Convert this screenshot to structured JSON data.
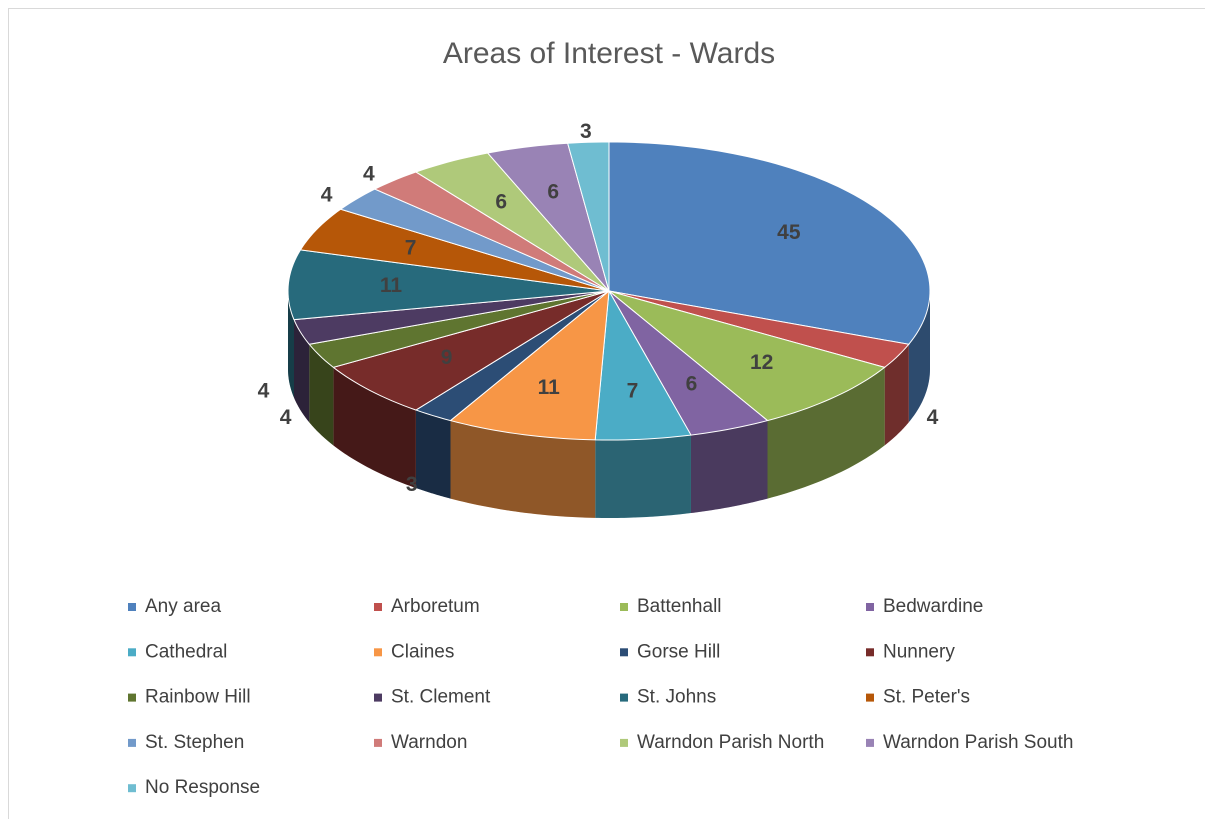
{
  "chart_data": {
    "type": "pie3d",
    "title": "Areas of Interest - Wards",
    "categories": [
      "Any area",
      "Arboretum",
      "Battenhall",
      "Bedwardine",
      "Cathedral",
      "Claines",
      "Gorse Hill",
      "Nunnery",
      "Rainbow Hill",
      "St. Clement",
      "St. Johns",
      "St. Peter's",
      "St. Stephen",
      "Warndon",
      "Warndon Parish North",
      "Warndon Parish South",
      "No Response"
    ],
    "values": [
      45,
      4,
      12,
      6,
      7,
      11,
      3,
      9,
      4,
      4,
      11,
      7,
      4,
      4,
      6,
      6,
      3
    ],
    "colors": [
      "#4f81bd",
      "#c0504d",
      "#9bbb59",
      "#8064a2",
      "#4bacc6",
      "#f79646",
      "#2c4d75",
      "#772c2a",
      "#5f7530",
      "#4d3b62",
      "#276a7c",
      "#b65708",
      "#729aca",
      "#d07b79",
      "#afc97a",
      "#9983b5",
      "#6fbdd1"
    ],
    "legend": "bottom"
  }
}
